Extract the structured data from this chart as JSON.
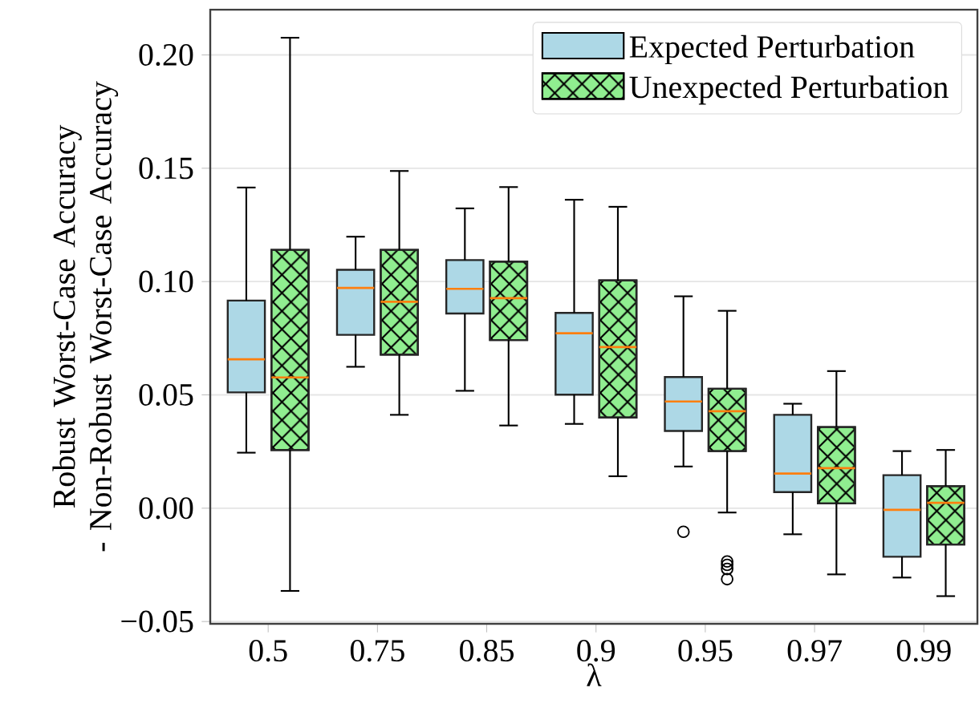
{
  "chart_data": {
    "type": "box",
    "xlabel": "λ",
    "ylabel": "Robust Worst-Case Accuracy\n- Non-Robust Worst-Case Accuracy",
    "categories": [
      "0.5",
      "0.75",
      "0.85",
      "0.9",
      "0.95",
      "0.97",
      "0.99"
    ],
    "series": [
      {
        "name": "Expected Perturbation",
        "color": "#add8e6",
        "boxes": [
          {
            "low": 0.0245,
            "q1": 0.0511,
            "median": 0.0657,
            "q3": 0.0916,
            "high": 0.1415
          },
          {
            "low": 0.0624,
            "q1": 0.0765,
            "median": 0.0972,
            "q3": 0.1052,
            "high": 0.1198
          },
          {
            "low": 0.0518,
            "q1": 0.0859,
            "median": 0.0968,
            "q3": 0.1095,
            "high": 0.1323
          },
          {
            "low": 0.0372,
            "q1": 0.0501,
            "median": 0.0772,
            "q3": 0.0862,
            "high": 0.1361
          },
          {
            "low": 0.0184,
            "q1": 0.0341,
            "median": 0.0471,
            "q3": 0.0579,
            "high": 0.0935,
            "outliers": [
              -0.0104
            ]
          },
          {
            "low": -0.0115,
            "q1": 0.0071,
            "median": 0.0153,
            "q3": 0.0412,
            "high": 0.0461
          },
          {
            "low": -0.0306,
            "q1": -0.0214,
            "median": -0.0007,
            "q3": 0.0146,
            "high": 0.0252
          }
        ]
      },
      {
        "name": "Unexpected Perturbation",
        "color": "#90ee90",
        "boxes": [
          {
            "low": -0.0365,
            "q1": 0.0257,
            "median": 0.0577,
            "q3": 0.114,
            "high": 0.2076
          },
          {
            "low": 0.0412,
            "q1": 0.0678,
            "median": 0.0911,
            "q3": 0.114,
            "high": 0.1488
          },
          {
            "low": 0.0365,
            "q1": 0.0742,
            "median": 0.0927,
            "q3": 0.1088,
            "high": 0.1417
          },
          {
            "low": 0.0141,
            "q1": 0.04,
            "median": 0.0711,
            "q3": 0.1005,
            "high": 0.133
          },
          {
            "low": -0.0019,
            "q1": 0.0252,
            "median": 0.0428,
            "q3": 0.0527,
            "high": 0.0871,
            "outliers": [
              -0.0235,
              -0.025,
              -0.0268,
              -0.0313
            ]
          },
          {
            "low": -0.0292,
            "q1": 0.0021,
            "median": 0.0177,
            "q3": 0.0358,
            "high": 0.0605
          },
          {
            "low": -0.0388,
            "q1": -0.016,
            "median": 0.0024,
            "q3": 0.0097,
            "high": 0.0257
          }
        ]
      }
    ],
    "ylim": [
      -0.051,
      0.22
    ],
    "yticks": [
      {
        "value": -0.05,
        "label": "−0.05"
      },
      {
        "value": 0,
        "label": "0.00"
      },
      {
        "value": 0.05,
        "label": "0.05"
      },
      {
        "value": 0.1,
        "label": "0.10"
      },
      {
        "value": 0.15,
        "label": "0.15"
      },
      {
        "value": 0.2,
        "label": "0.20"
      }
    ],
    "grid": "y",
    "legend": "top right"
  }
}
